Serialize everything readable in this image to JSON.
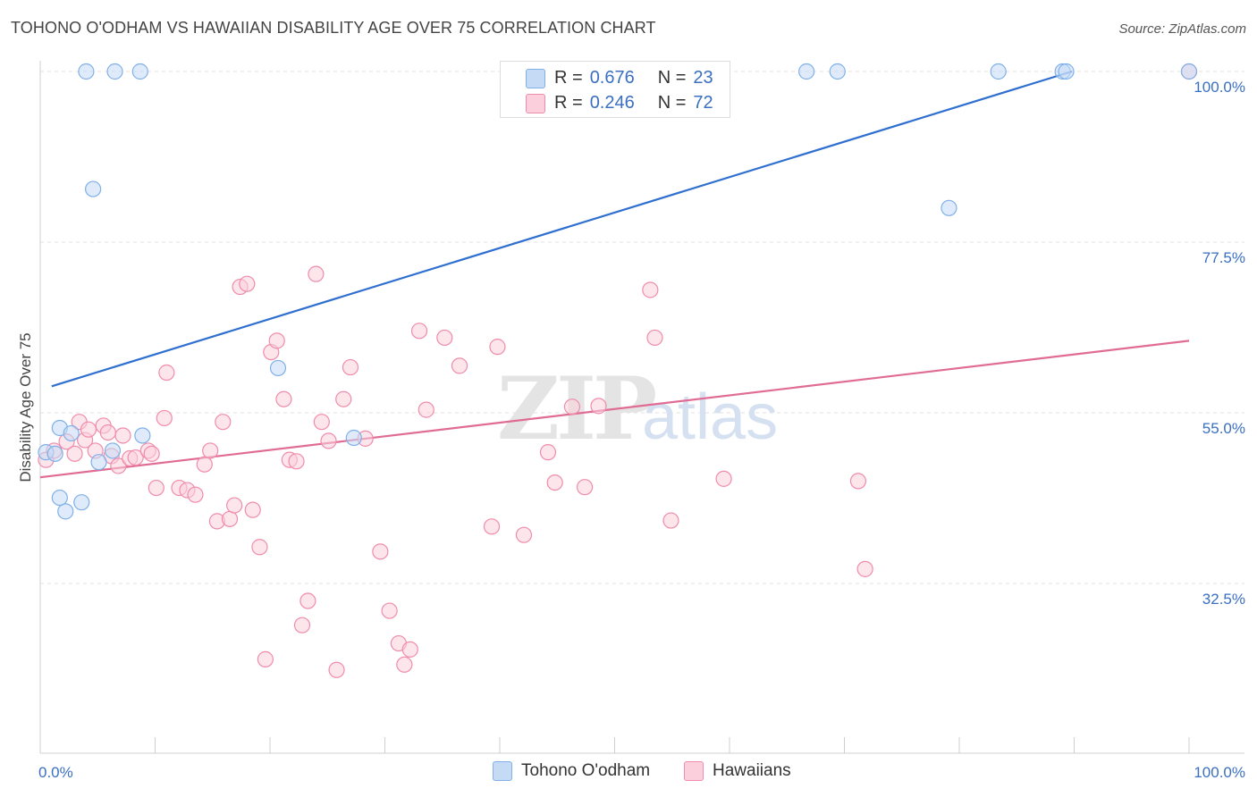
{
  "title": "TOHONO O'ODHAM VS HAWAIIAN DISABILITY AGE OVER 75 CORRELATION CHART",
  "source": "Source: ZipAtlas.com",
  "watermark": "ZIPatlas",
  "legend": {
    "r_label": "R =",
    "n_label": "N =",
    "rows": [
      {
        "r": "0.676",
        "n": "23",
        "color": "#7fb0e8",
        "fill": "#c5daf5"
      },
      {
        "r": "0.246",
        "n": "72",
        "color": "#f08cab",
        "fill": "#fbd0dc"
      }
    ]
  },
  "bottom_legend": [
    "Tohono O'odham",
    "Hawaiians"
  ],
  "chart_data": {
    "type": "scatter",
    "title": "TOHONO O'ODHAM VS HAWAIIAN DISABILITY AGE OVER 75 CORRELATION CHART",
    "xlabel": "",
    "ylabel": "Disability Age Over 75",
    "xlim": [
      0,
      100
    ],
    "ylim": [
      13.5,
      102
    ],
    "x_tick_labels": [
      "0.0%",
      "100.0%"
    ],
    "y_ticks": [
      100,
      77.5,
      55,
      32.5
    ],
    "y_tick_labels": [
      "100.0%",
      "77.5%",
      "55.0%",
      "32.5%"
    ],
    "grid": true,
    "series": [
      {
        "name": "Tohono O'odham",
        "color": "#7fb0e8",
        "fill": "#c5daf5",
        "line_color": "#2f6fd0",
        "trend": [
          [
            1.0,
            58.5
          ],
          [
            89.8,
            100.0
          ]
        ],
        "points": [
          [
            0.5,
            49.8
          ],
          [
            1.3,
            49.6
          ],
          [
            1.7,
            53.0
          ],
          [
            2.7,
            52.3
          ],
          [
            6.3,
            50.0
          ],
          [
            4.0,
            100.0
          ],
          [
            6.5,
            100.0
          ],
          [
            8.7,
            100.0
          ],
          [
            4.6,
            84.5
          ],
          [
            3.6,
            43.2
          ],
          [
            2.2,
            42.0
          ],
          [
            1.7,
            43.8
          ],
          [
            5.1,
            48.5
          ],
          [
            8.9,
            52.0
          ],
          [
            20.7,
            60.9
          ],
          [
            27.3,
            51.7
          ],
          [
            66.7,
            100.0
          ],
          [
            69.4,
            100.0
          ],
          [
            83.4,
            100.0
          ],
          [
            89.0,
            100.0
          ],
          [
            89.3,
            100.0
          ],
          [
            79.1,
            82.0
          ],
          [
            100.0,
            100.0
          ]
        ]
      },
      {
        "name": "Hawaiians",
        "color": "#f08cab",
        "fill": "#fbd0dc",
        "line_color": "#e06b94",
        "trend": [
          [
            0.0,
            46.5
          ],
          [
            100.0,
            64.5
          ]
        ],
        "points": [
          [
            0.5,
            48.8
          ],
          [
            1.2,
            50.0
          ],
          [
            2.3,
            51.2
          ],
          [
            3.0,
            49.6
          ],
          [
            3.4,
            53.8
          ],
          [
            3.9,
            51.4
          ],
          [
            4.2,
            52.8
          ],
          [
            4.8,
            50.0
          ],
          [
            5.5,
            53.3
          ],
          [
            5.9,
            52.4
          ],
          [
            6.2,
            49.3
          ],
          [
            6.8,
            48.0
          ],
          [
            7.2,
            52.0
          ],
          [
            7.8,
            49.0
          ],
          [
            8.3,
            49.1
          ],
          [
            9.4,
            50.0
          ],
          [
            9.7,
            49.6
          ],
          [
            10.1,
            45.1
          ],
          [
            10.8,
            54.3
          ],
          [
            11.0,
            60.3
          ],
          [
            12.1,
            45.1
          ],
          [
            12.8,
            44.8
          ],
          [
            13.5,
            44.2
          ],
          [
            14.3,
            48.2
          ],
          [
            14.8,
            50.0
          ],
          [
            15.4,
            40.7
          ],
          [
            15.9,
            53.8
          ],
          [
            16.5,
            41.0
          ],
          [
            16.9,
            42.8
          ],
          [
            17.4,
            71.6
          ],
          [
            18.0,
            72.0
          ],
          [
            18.5,
            42.2
          ],
          [
            19.1,
            37.3
          ],
          [
            19.6,
            22.5
          ],
          [
            20.1,
            63.0
          ],
          [
            20.6,
            64.5
          ],
          [
            21.2,
            56.8
          ],
          [
            21.7,
            48.8
          ],
          [
            22.3,
            48.6
          ],
          [
            22.8,
            27.0
          ],
          [
            23.3,
            30.2
          ],
          [
            24.0,
            73.3
          ],
          [
            24.5,
            53.8
          ],
          [
            25.1,
            51.3
          ],
          [
            25.8,
            21.1
          ],
          [
            26.4,
            56.8
          ],
          [
            27.0,
            61.0
          ],
          [
            28.3,
            51.6
          ],
          [
            29.6,
            36.7
          ],
          [
            30.4,
            28.9
          ],
          [
            31.2,
            24.6
          ],
          [
            31.7,
            21.8
          ],
          [
            32.2,
            23.8
          ],
          [
            33.0,
            65.8
          ],
          [
            33.6,
            55.4
          ],
          [
            35.2,
            64.9
          ],
          [
            36.5,
            61.2
          ],
          [
            39.3,
            40.0
          ],
          [
            39.8,
            63.7
          ],
          [
            42.1,
            38.9
          ],
          [
            44.2,
            49.8
          ],
          [
            44.8,
            45.8
          ],
          [
            46.3,
            55.8
          ],
          [
            47.4,
            45.2
          ],
          [
            48.6,
            55.9
          ],
          [
            53.1,
            71.2
          ],
          [
            53.5,
            64.9
          ],
          [
            54.9,
            40.8
          ],
          [
            59.5,
            46.3
          ],
          [
            71.2,
            46.0
          ],
          [
            71.8,
            34.4
          ],
          [
            100.0,
            100.0
          ]
        ]
      }
    ]
  }
}
